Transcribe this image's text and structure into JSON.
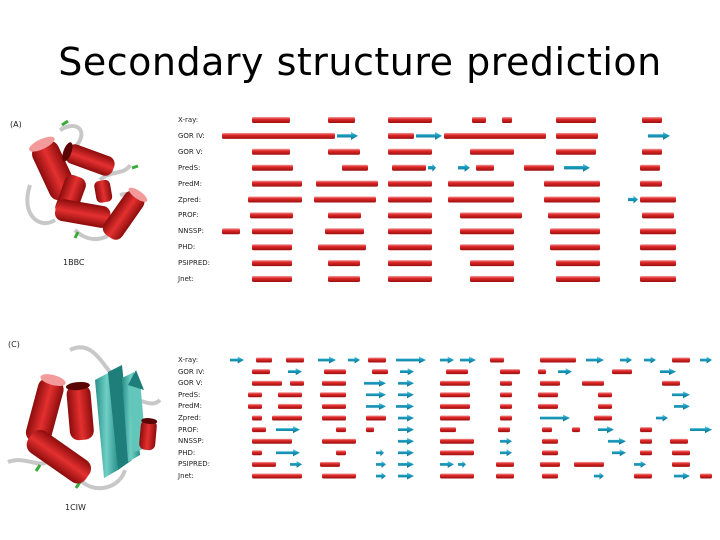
{
  "title": "Secondary structure prediction",
  "colors": {
    "helix": "#d42020",
    "strand": "#1a9cc0",
    "coil": "#b8b8b8"
  },
  "panels": [
    {
      "label": "(A)",
      "pdb": "1BBC",
      "methods": [
        "X-ray:",
        "GOR IV:",
        "GOR V:",
        "PredS:",
        "PredM:",
        "Zpred:",
        "PROF:",
        "NNSSP:",
        "PHD:",
        "PSIPRED:",
        "Jnet:"
      ]
    },
    {
      "label": "(C)",
      "pdb": "1CIW",
      "methods": [
        "X-ray:",
        "GOR IV:",
        "GOR V:",
        "PredS:",
        "PredM:",
        "Zpred:",
        "PROF:",
        "NNSSP:",
        "PHD:",
        "PSIPRED:",
        "Jnet:"
      ]
    }
  ]
}
